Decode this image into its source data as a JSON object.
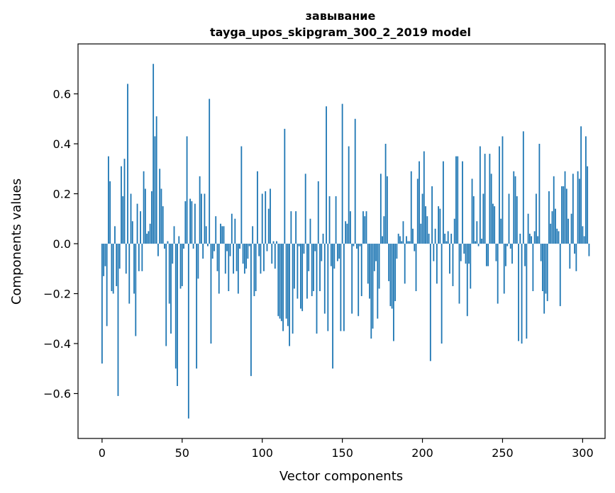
{
  "chart_data": {
    "type": "bar",
    "title": "завывание",
    "subtitle": "tayga_upos_skipgram_300_2_2019 model",
    "xlabel": "Vector components",
    "ylabel": "Components values",
    "xlim": [
      -15,
      314
    ],
    "ylim": [
      -0.78,
      0.8
    ],
    "xticks": [
      0,
      50,
      100,
      150,
      200,
      250,
      300
    ],
    "xtick_labels": [
      "0",
      "50",
      "100",
      "150",
      "200",
      "250",
      "300"
    ],
    "yticks": [
      -0.6,
      -0.4,
      -0.2,
      0.0,
      0.2,
      0.4,
      0.6
    ],
    "ytick_labels": [
      "−0.6",
      "−0.4",
      "−0.2",
      "0.0",
      "0.2",
      "0.4",
      "0.6"
    ],
    "grid": false,
    "bar_color": "#1f77b4",
    "values": [
      -0.48,
      -0.13,
      -0.09,
      -0.33,
      0.35,
      0.25,
      -0.19,
      -0.2,
      0.07,
      -0.17,
      -0.61,
      -0.1,
      0.31,
      0.19,
      0.34,
      -0.12,
      0.64,
      -0.24,
      0.2,
      0.09,
      -0.2,
      -0.37,
      0.16,
      -0.11,
      0.13,
      -0.11,
      0.29,
      0.22,
      0.04,
      0.05,
      0.08,
      0.21,
      0.72,
      0.43,
      0.51,
      -0.05,
      0.3,
      0.22,
      0.15,
      -0.02,
      -0.41,
      0.01,
      -0.24,
      -0.36,
      -0.08,
      0.07,
      -0.5,
      -0.57,
      0.03,
      -0.18,
      -0.17,
      -0.02,
      0.17,
      0.43,
      -0.7,
      0.18,
      0.17,
      -0.02,
      0.16,
      -0.5,
      -0.14,
      0.27,
      0.2,
      -0.06,
      0.2,
      0.07,
      -0.01,
      0.58,
      -0.4,
      -0.06,
      -0.03,
      0.11,
      -0.11,
      -0.2,
      0.08,
      0.07,
      0.07,
      -0.12,
      -0.03,
      -0.19,
      -0.05,
      0.12,
      -0.12,
      0.1,
      -0.11,
      -0.2,
      -0.02,
      0.39,
      -0.08,
      -0.12,
      -0.1,
      -0.06,
      -0.01,
      -0.53,
      0.07,
      -0.21,
      -0.19,
      0.29,
      -0.05,
      -0.12,
      0.2,
      -0.11,
      0.21,
      -0.03,
      0.14,
      0.22,
      -0.08,
      0.01,
      -0.1,
      0.01,
      -0.29,
      -0.3,
      -0.31,
      -0.35,
      0.46,
      -0.3,
      -0.33,
      -0.41,
      0.13,
      -0.36,
      -0.18,
      0.13,
      -0.22,
      -0.01,
      -0.26,
      -0.27,
      -0.04,
      0.28,
      -0.22,
      -0.11,
      0.1,
      -0.21,
      -0.19,
      -0.03,
      -0.36,
      0.25,
      -0.19,
      -0.07,
      0.04,
      -0.28,
      0.55,
      -0.35,
      0.19,
      -0.09,
      -0.5,
      -0.1,
      0.19,
      -0.07,
      -0.06,
      -0.35,
      0.56,
      -0.35,
      0.09,
      0.08,
      0.39,
      0.13,
      -0.28,
      -0.01,
      0.5,
      -0.02,
      -0.29,
      -0.01,
      -0.21,
      0.13,
      0.11,
      0.13,
      -0.16,
      -0.22,
      -0.38,
      -0.34,
      -0.11,
      -0.07,
      -0.3,
      -0.18,
      0.28,
      0.03,
      0.11,
      0.4,
      0.27,
      -0.15,
      -0.25,
      -0.26,
      -0.39,
      -0.23,
      -0.06,
      0.04,
      0.03,
      0.01,
      0.09,
      -0.16,
      0.03,
      0.01,
      0.01,
      0.29,
      0.06,
      -0.03,
      -0.19,
      0.26,
      0.33,
      0.08,
      0.2,
      0.37,
      0.15,
      0.11,
      0.04,
      -0.47,
      0.23,
      -0.07,
      0.06,
      -0.16,
      0.15,
      0.14,
      -0.4,
      0.33,
      0.04,
      0.01,
      0.05,
      -0.12,
      0.04,
      -0.17,
      0.1,
      0.35,
      0.35,
      -0.24,
      -0.07,
      0.33,
      -0.04,
      -0.08,
      -0.29,
      -0.08,
      -0.18,
      0.26,
      0.19,
      0.01,
      0.09,
      -0.01,
      0.39,
      0.02,
      0.2,
      0.36,
      -0.09,
      -0.09,
      0.36,
      0.28,
      0.16,
      0.15,
      -0.07,
      -0.24,
      0.39,
      0.1,
      0.43,
      -0.2,
      -0.09,
      -0.01,
      0.2,
      -0.02,
      -0.08,
      0.29,
      0.27,
      0.19,
      -0.39,
      0.04,
      -0.4,
      0.45,
      -0.09,
      -0.38,
      0.12,
      0.04,
      0.03,
      -0.19,
      0.05,
      0.2,
      0.03,
      0.4,
      -0.07,
      -0.19,
      -0.28,
      -0.2,
      -0.23,
      0.21,
      0.08,
      0.13,
      0.27,
      0.14,
      0.06,
      0.05,
      -0.25,
      0.23,
      0.23,
      0.29,
      0.22,
      0.1,
      -0.1,
      0.12,
      0.28,
      -0.04,
      -0.11,
      0.29,
      0.26,
      0.47,
      0.07,
      0.03,
      0.43,
      0.31,
      -0.05
    ]
  }
}
